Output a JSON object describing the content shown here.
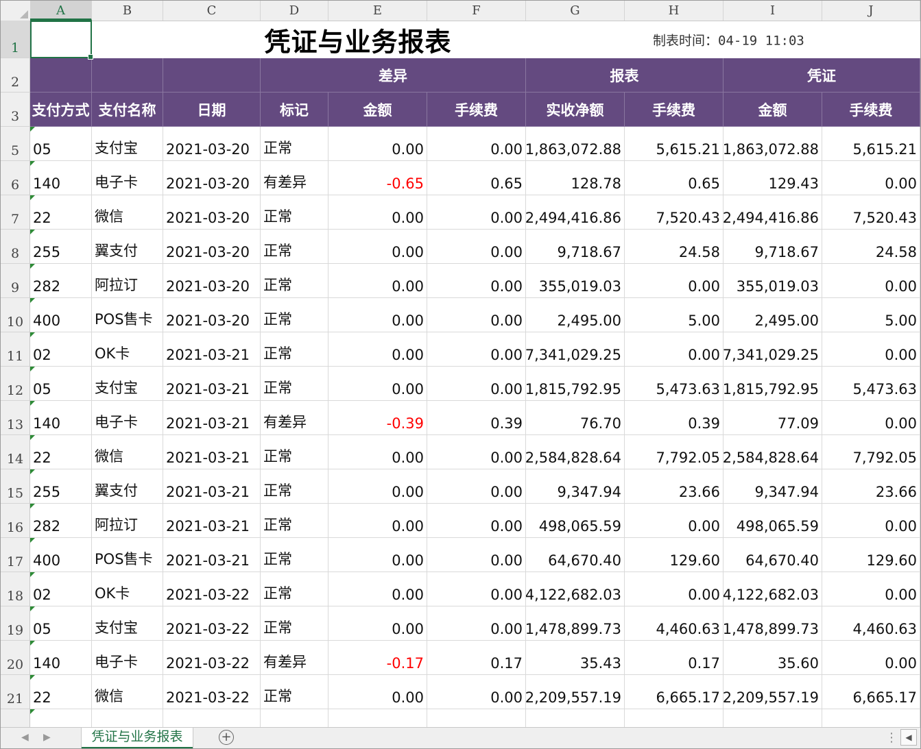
{
  "columns": [
    "A",
    "B",
    "C",
    "D",
    "E",
    "F",
    "G",
    "H",
    "I",
    "J"
  ],
  "selected_column": "A",
  "selected_row": "1",
  "title": "凭证与业务报表",
  "make_time": "制表时间：04-19 11:03",
  "header_groups": {
    "diff": "差异",
    "report": "报表",
    "voucher": "凭证"
  },
  "header_cols": [
    "支付方式",
    "支付名称",
    "日期",
    "标记",
    "金额",
    "手续费",
    "实收净额",
    "手续费",
    "金额",
    "手续费"
  ],
  "rows": [
    {
      "num": "5",
      "c": [
        "05",
        "支付宝",
        "2021-03-20",
        "正常",
        "0.00",
        "0.00",
        "1,863,072.88",
        "5,615.21",
        "1,863,072.88",
        "5,615.21"
      ]
    },
    {
      "num": "6",
      "c": [
        "140",
        "电子卡",
        "2021-03-20",
        "有差异",
        "-0.65",
        "0.65",
        "128.78",
        "0.65",
        "129.43",
        "0.00"
      ]
    },
    {
      "num": "7",
      "c": [
        "22",
        "微信",
        "2021-03-20",
        "正常",
        "0.00",
        "0.00",
        "2,494,416.86",
        "7,520.43",
        "2,494,416.86",
        "7,520.43"
      ]
    },
    {
      "num": "8",
      "c": [
        "255",
        "翼支付",
        "2021-03-20",
        "正常",
        "0.00",
        "0.00",
        "9,718.67",
        "24.58",
        "9,718.67",
        "24.58"
      ]
    },
    {
      "num": "9",
      "c": [
        "282",
        "阿拉订",
        "2021-03-20",
        "正常",
        "0.00",
        "0.00",
        "355,019.03",
        "0.00",
        "355,019.03",
        "0.00"
      ]
    },
    {
      "num": "10",
      "c": [
        "400",
        "POS售卡",
        "2021-03-20",
        "正常",
        "0.00",
        "0.00",
        "2,495.00",
        "5.00",
        "2,495.00",
        "5.00"
      ]
    },
    {
      "num": "11",
      "c": [
        "02",
        "OK卡",
        "2021-03-21",
        "正常",
        "0.00",
        "0.00",
        "7,341,029.25",
        "0.00",
        "7,341,029.25",
        "0.00"
      ]
    },
    {
      "num": "12",
      "c": [
        "05",
        "支付宝",
        "2021-03-21",
        "正常",
        "0.00",
        "0.00",
        "1,815,792.95",
        "5,473.63",
        "1,815,792.95",
        "5,473.63"
      ]
    },
    {
      "num": "13",
      "c": [
        "140",
        "电子卡",
        "2021-03-21",
        "有差异",
        "-0.39",
        "0.39",
        "76.70",
        "0.39",
        "77.09",
        "0.00"
      ]
    },
    {
      "num": "14",
      "c": [
        "22",
        "微信",
        "2021-03-21",
        "正常",
        "0.00",
        "0.00",
        "2,584,828.64",
        "7,792.05",
        "2,584,828.64",
        "7,792.05"
      ]
    },
    {
      "num": "15",
      "c": [
        "255",
        "翼支付",
        "2021-03-21",
        "正常",
        "0.00",
        "0.00",
        "9,347.94",
        "23.66",
        "9,347.94",
        "23.66"
      ]
    },
    {
      "num": "16",
      "c": [
        "282",
        "阿拉订",
        "2021-03-21",
        "正常",
        "0.00",
        "0.00",
        "498,065.59",
        "0.00",
        "498,065.59",
        "0.00"
      ]
    },
    {
      "num": "17",
      "c": [
        "400",
        "POS售卡",
        "2021-03-21",
        "正常",
        "0.00",
        "0.00",
        "64,670.40",
        "129.60",
        "64,670.40",
        "129.60"
      ]
    },
    {
      "num": "18",
      "c": [
        "02",
        "OK卡",
        "2021-03-22",
        "正常",
        "0.00",
        "0.00",
        "4,122,682.03",
        "0.00",
        "4,122,682.03",
        "0.00"
      ]
    },
    {
      "num": "19",
      "c": [
        "05",
        "支付宝",
        "2021-03-22",
        "正常",
        "0.00",
        "0.00",
        "1,478,899.73",
        "4,460.63",
        "1,478,899.73",
        "4,460.63"
      ]
    },
    {
      "num": "20",
      "c": [
        "140",
        "电子卡",
        "2021-03-22",
        "有差异",
        "-0.17",
        "0.17",
        "35.43",
        "0.17",
        "35.60",
        "0.00"
      ]
    },
    {
      "num": "21",
      "c": [
        "22",
        "微信",
        "2021-03-22",
        "正常",
        "0.00",
        "0.00",
        "2,209,557.19",
        "6,665.17",
        "2,209,557.19",
        "6,665.17"
      ]
    }
  ],
  "sheet_tab": "凭证与业务报表",
  "colors": {
    "header_bg": "#644a80",
    "accent": "#217346",
    "negative": "#ff0000"
  }
}
